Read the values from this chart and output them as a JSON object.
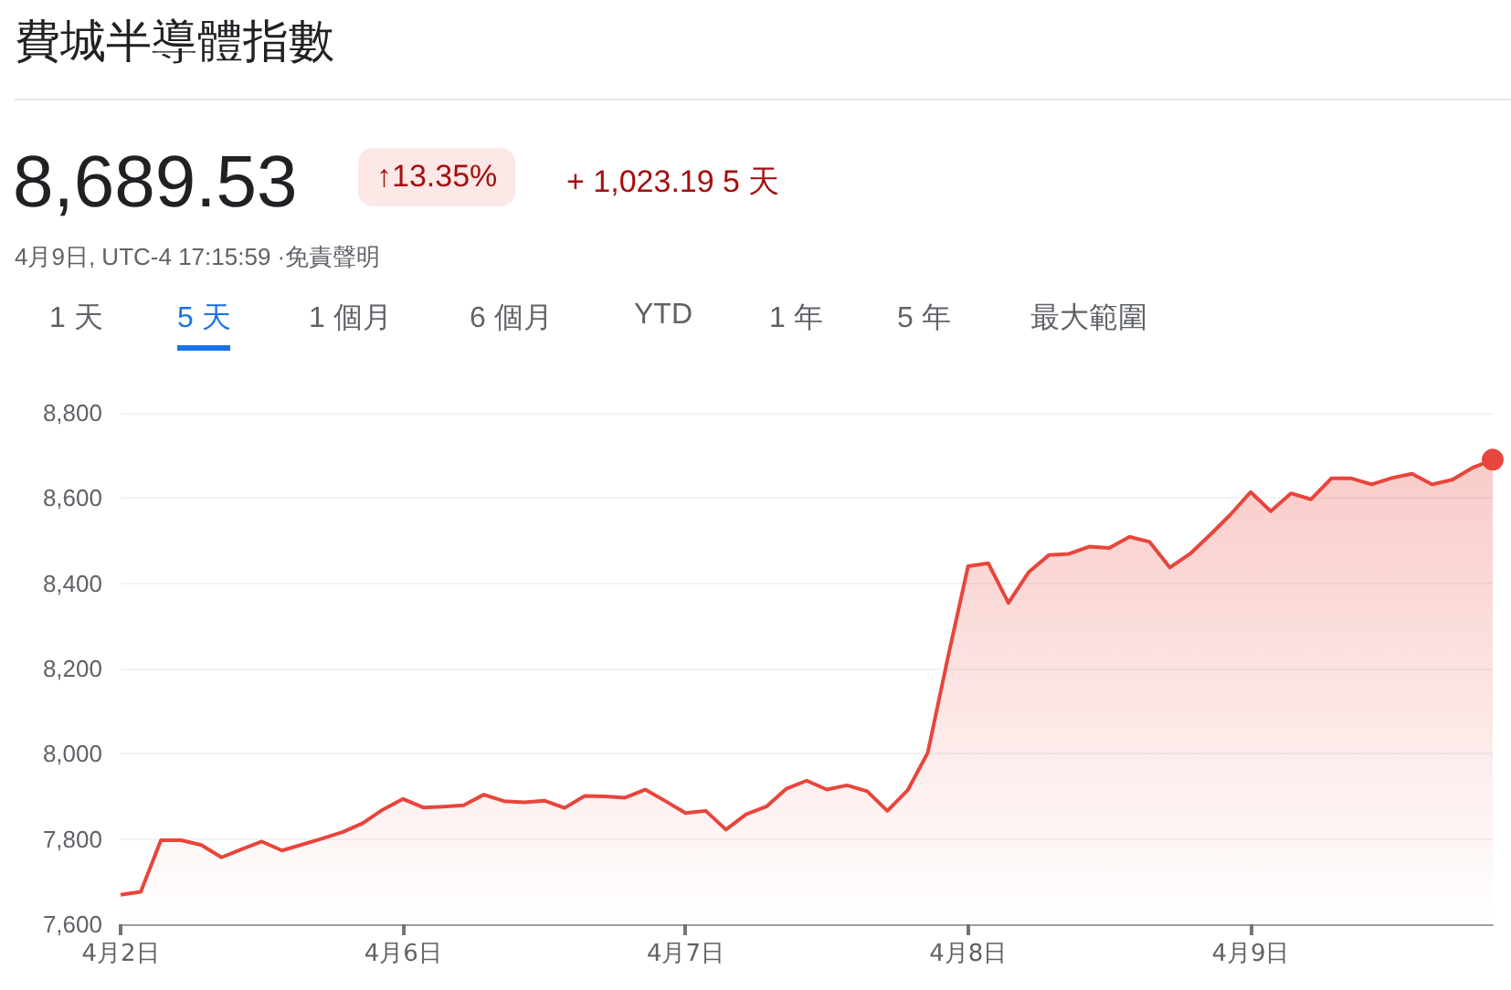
{
  "chart_data": {
    "type": "area",
    "title": "費城半導體指數",
    "annotations": [
      "8,689.53",
      "↑13.35%",
      "+ 1,023.19 5 天",
      "4月9日, UTC-4 17:15:59 ·免責聲明",
      "1 天",
      "5 天",
      "1 個月",
      "6 個月",
      "YTD",
      "1 年",
      "5 年",
      "最大範圍"
    ],
    "categories": [
      "4月2日",
      null,
      null,
      null,
      null,
      null,
      null,
      null,
      null,
      null,
      null,
      null,
      null,
      null,
      "4月6日",
      null,
      null,
      null,
      null,
      null,
      null,
      null,
      null,
      null,
      null,
      null,
      null,
      null,
      "4月7日",
      null,
      null,
      null,
      null,
      null,
      null,
      null,
      null,
      null,
      null,
      null,
      null,
      null,
      "4月8日",
      null,
      null,
      null,
      null,
      null,
      null,
      null,
      null,
      null,
      null,
      null,
      null,
      null,
      "4月9日",
      null,
      null,
      null,
      null,
      null,
      null,
      null,
      null,
      null,
      null,
      null,
      null
    ],
    "series": [
      {
        "color": "#e8453c",
        "values": [
          7669,
          7676,
          7797,
          7797,
          7786,
          7757,
          7776,
          7794,
          7773,
          7787,
          7801,
          7816,
          7837,
          7869,
          7894,
          7874,
          7876,
          7879,
          7904,
          7889,
          7886,
          7890,
          7873,
          7901,
          7900,
          7897,
          7916,
          7889,
          7861,
          7866,
          7822,
          7858,
          7876,
          7918,
          7937,
          7916,
          7926,
          7912,
          7866,
          7914,
          8002,
          8226,
          8440,
          8447,
          8354,
          8426,
          8466,
          8469,
          8486,
          8483,
          8509,
          8497,
          8437,
          8469,
          8514,
          8561,
          8614,
          8569,
          8611,
          8597,
          8646,
          8646,
          8632,
          8647,
          8657,
          8632,
          8643,
          8671,
          8690
        ]
      }
    ],
    "ylim": [
      7600,
      8800
    ],
    "yticks": [
      {
        "value": 7600,
        "label": "7,600"
      },
      {
        "value": 7800,
        "label": "7,800"
      },
      {
        "value": 8000,
        "label": "8,000"
      },
      {
        "value": 8200,
        "label": "8,200"
      },
      {
        "value": 8400,
        "label": "8,400"
      },
      {
        "value": 8600,
        "label": "8,600"
      },
      {
        "value": 8800,
        "label": "8,800"
      }
    ],
    "grid": "y"
  }
}
